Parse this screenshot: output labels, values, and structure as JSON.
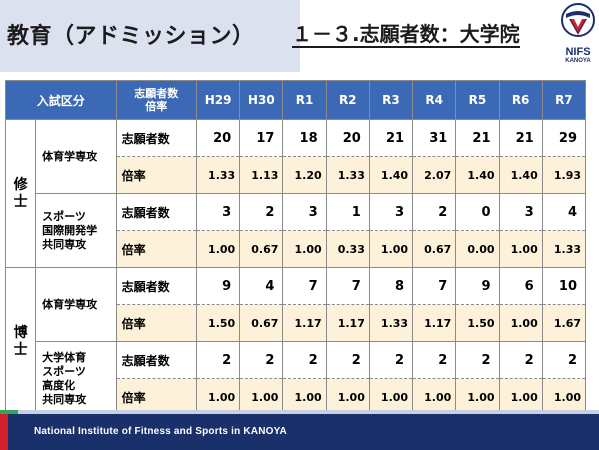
{
  "header": {
    "title": "教育（アドミッション）",
    "subtitle": "１－３.志願者数：大学院"
  },
  "logo": {
    "name": "NIFS",
    "sub": "KANOYA",
    "ribbon_text": "KANOYA"
  },
  "table": {
    "headers": {
      "category": "入試区分",
      "metric_line1": "志願者数",
      "metric_line2": "倍率",
      "years": [
        "H29",
        "H30",
        "R1",
        "R2",
        "R3",
        "R4",
        "R5",
        "R6",
        "R7"
      ]
    },
    "labels": {
      "applicants": "志願者数",
      "ratio": "倍率"
    },
    "degrees": [
      {
        "name": "修士",
        "majors": [
          {
            "name_lines": [
              "体育学専攻"
            ],
            "applicants": [
              "20",
              "17",
              "18",
              "20",
              "21",
              "31",
              "21",
              "21",
              "29"
            ],
            "ratio": [
              "1.33",
              "1.13",
              "1.20",
              "1.33",
              "1.40",
              "2.07",
              "1.40",
              "1.40",
              "1.93"
            ]
          },
          {
            "name_lines": [
              "スポーツ",
              "国際開発学",
              "共同専攻"
            ],
            "applicants": [
              "3",
              "2",
              "3",
              "1",
              "3",
              "2",
              "0",
              "3",
              "4"
            ],
            "ratio": [
              "1.00",
              "0.67",
              "1.00",
              "0.33",
              "1.00",
              "0.67",
              "0.00",
              "1.00",
              "1.33"
            ]
          }
        ]
      },
      {
        "name": "博士",
        "majors": [
          {
            "name_lines": [
              "体育学専攻"
            ],
            "applicants": [
              "9",
              "4",
              "7",
              "7",
              "8",
              "7",
              "9",
              "6",
              "10"
            ],
            "ratio": [
              "1.50",
              "0.67",
              "1.17",
              "1.17",
              "1.33",
              "1.17",
              "1.50",
              "1.00",
              "1.67"
            ]
          },
          {
            "name_lines": [
              "大学体育",
              "スポーツ",
              "高度化",
              "共同専攻"
            ],
            "applicants": [
              "2",
              "2",
              "2",
              "2",
              "2",
              "2",
              "2",
              "2",
              "2"
            ],
            "ratio": [
              "1.00",
              "1.00",
              "1.00",
              "1.00",
              "1.00",
              "1.00",
              "1.00",
              "1.00",
              "1.00"
            ]
          }
        ]
      }
    ]
  },
  "footer": {
    "text": "National Institute of Fitness and Sports in KANOYA"
  },
  "colors": {
    "header_fill": "#3b69b5",
    "ratio_row_fill": "#fdf2d9",
    "title_bg": "#dbe1ef",
    "footer_navy": "#19306a",
    "footer_red": "#d0222d"
  }
}
